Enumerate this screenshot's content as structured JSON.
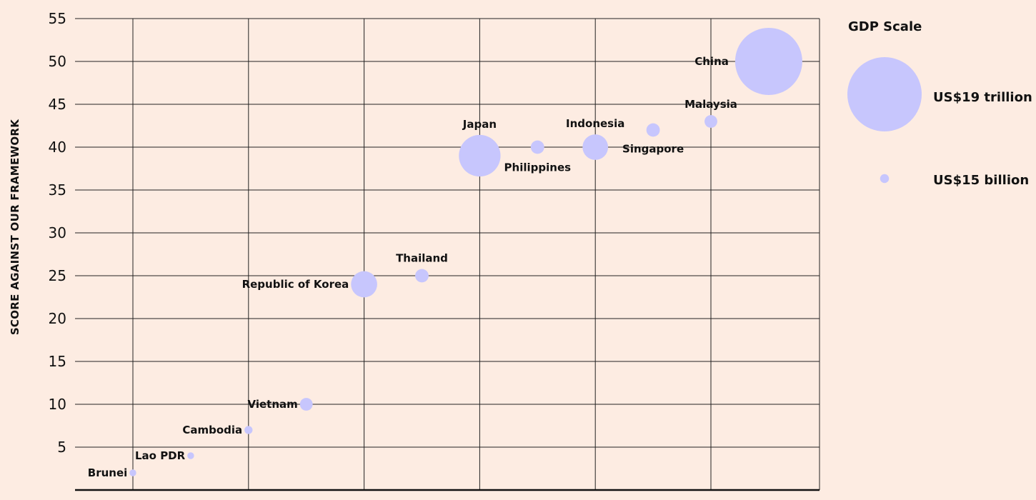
{
  "chart_data": {
    "type": "scatter",
    "ylabel": "SCORE AGAINST OUR FRAMEWORK",
    "xlabel": "",
    "ylim": [
      0,
      55
    ],
    "yticks": [
      5,
      10,
      15,
      20,
      25,
      30,
      35,
      40,
      45,
      50,
      55
    ],
    "grid": true,
    "bubble_color": "#c7c6fd",
    "points": [
      {
        "label": "Brunei",
        "x": 1,
        "y": 2,
        "size_rel": 0.1
      },
      {
        "label": "Lao PDR",
        "x": 2,
        "y": 4,
        "size_rel": 0.1
      },
      {
        "label": "Cambodia",
        "x": 3,
        "y": 7,
        "size_rel": 0.12
      },
      {
        "label": "Vietnam",
        "x": 4,
        "y": 10,
        "size_rel": 0.19
      },
      {
        "label": "Republic of Korea",
        "x": 5,
        "y": 24,
        "size_rel": 0.39
      },
      {
        "label": "Thailand",
        "x": 6,
        "y": 25,
        "size_rel": 0.2
      },
      {
        "label": "Japan",
        "x": 7,
        "y": 39,
        "size_rel": 0.62
      },
      {
        "label": "Philippines",
        "x": 8,
        "y": 40,
        "size_rel": 0.2
      },
      {
        "label": "Indonesia",
        "x": 9,
        "y": 40,
        "size_rel": 0.38
      },
      {
        "label": "Singapore",
        "x": 10,
        "y": 42,
        "size_rel": 0.2
      },
      {
        "label": "Malaysia",
        "x": 11,
        "y": 43,
        "size_rel": 0.19
      },
      {
        "label": "China",
        "x": 12,
        "y": 50,
        "size_rel": 1.0
      }
    ],
    "legend": {
      "title": "GDP Scale",
      "position": "right",
      "items": [
        {
          "label": "US$19 trillion",
          "size_rel": 1.0
        },
        {
          "label": "US$15 billion",
          "size_rel": 0.12
        }
      ]
    }
  }
}
